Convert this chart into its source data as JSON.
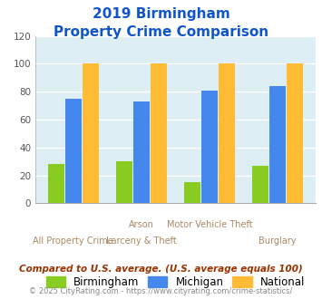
{
  "title_line1": "2019 Birmingham",
  "title_line2": "Property Crime Comparison",
  "cat_labels_top": [
    "",
    "Arson",
    "Motor Vehicle Theft",
    ""
  ],
  "cat_labels_bot": [
    "All Property Crime",
    "Larceny & Theft",
    "",
    "Burglary"
  ],
  "birmingham": [
    28,
    30,
    15,
    27
  ],
  "michigan": [
    75,
    73,
    81,
    84
  ],
  "national": [
    100,
    100,
    100,
    100
  ],
  "birmingham_color": "#88cc22",
  "michigan_color": "#4488ee",
  "national_color": "#ffbb33",
  "ylim": [
    0,
    120
  ],
  "yticks": [
    0,
    20,
    40,
    60,
    80,
    100,
    120
  ],
  "plot_bg_color": "#ddeef5",
  "fig_bg_color": "#ffffff",
  "title_color": "#1155cc",
  "xlabel_color": "#aa8866",
  "footer_text": "Compared to U.S. average. (U.S. average equals 100)",
  "copyright_text": "© 2025 CityRating.com - https://www.cityrating.com/crime-statistics/",
  "footer_color": "#993300",
  "copyright_color": "#888888",
  "legend_labels": [
    "Birmingham",
    "Michigan",
    "National"
  ]
}
